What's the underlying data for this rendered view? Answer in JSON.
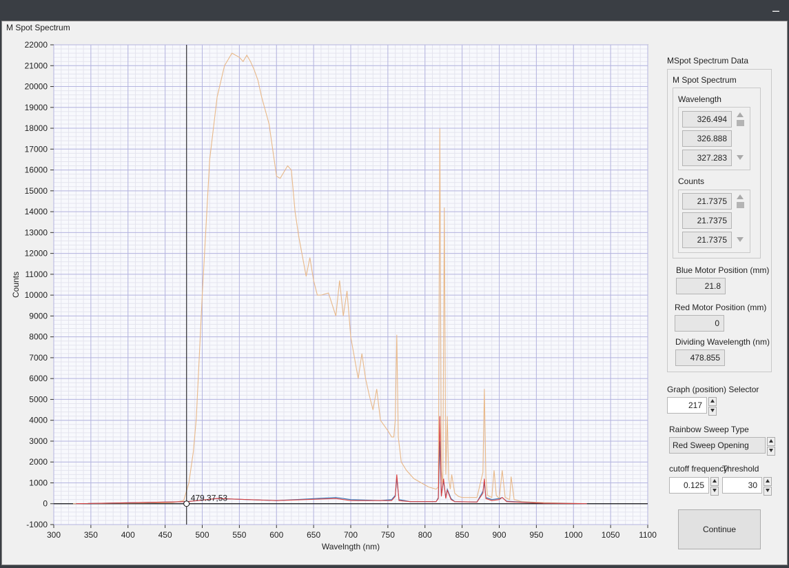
{
  "window": {
    "title": "M Spot Spectrum",
    "minimize_glyph": "–"
  },
  "chart_data": {
    "type": "line",
    "title": "",
    "xlabel": "Wavelngth (nm)",
    "ylabel": "Counts",
    "xlim": [
      300,
      1100
    ],
    "ylim": [
      -1000,
      22000
    ],
    "xticks": [
      300,
      350,
      400,
      450,
      500,
      550,
      600,
      650,
      700,
      750,
      800,
      850,
      900,
      950,
      1000,
      1050,
      1100
    ],
    "yticks": [
      -1000,
      0,
      1000,
      2000,
      3000,
      4000,
      5000,
      6000,
      7000,
      8000,
      9000,
      10000,
      11000,
      12000,
      13000,
      14000,
      15000,
      16000,
      17000,
      18000,
      19000,
      20000,
      21000,
      22000
    ],
    "grid": true,
    "cursor": {
      "x": 478.855,
      "label": "479.37,53"
    },
    "series": [
      {
        "color": "#e8b888",
        "x": [
          326,
          460,
          475,
          482,
          488,
          492,
          500,
          510,
          520,
          530,
          540,
          550,
          555,
          560,
          565,
          570,
          575,
          580,
          590,
          600,
          605,
          610,
          615,
          620,
          625,
          630,
          640,
          645,
          650,
          655,
          660,
          670,
          680,
          685,
          690,
          695,
          700,
          705,
          710,
          715,
          720,
          725,
          730,
          735,
          740,
          750,
          755,
          758,
          760,
          762,
          764,
          768,
          775,
          785,
          795,
          805,
          815,
          818,
          820,
          822,
          824,
          826,
          828,
          830,
          832,
          834,
          836,
          840,
          845,
          850,
          870,
          878,
          880,
          882,
          884,
          890,
          893,
          896,
          900,
          904,
          908,
          914,
          916,
          920,
          930,
          960,
          1018
        ],
        "y": [
          0,
          50,
          150,
          1000,
          2500,
          4100,
          10000,
          16500,
          19500,
          21000,
          21600,
          21400,
          21200,
          21500,
          21200,
          20800,
          20300,
          19500,
          18200,
          15700,
          15600,
          15900,
          16200,
          16000,
          14000,
          12800,
          10900,
          11800,
          10700,
          10000,
          10000,
          10100,
          9000,
          10700,
          9000,
          10200,
          8000,
          7000,
          6000,
          7200,
          6000,
          5200,
          4500,
          5500,
          4000,
          3500,
          3200,
          3200,
          4000,
          8100,
          3200,
          2000,
          1600,
          1200,
          1000,
          800,
          700,
          800,
          18000,
          1600,
          900,
          14200,
          1400,
          4200,
          1200,
          700,
          1400,
          500,
          350,
          300,
          300,
          1500,
          5500,
          1300,
          400,
          300,
          1600,
          400,
          250,
          1600,
          300,
          200,
          1300,
          200,
          100,
          50,
          0
        ]
      },
      {
        "color": "#3a78b8",
        "x": [
          330,
          480,
          520,
          560,
          600,
          680,
          700,
          740,
          755,
          760,
          762,
          765,
          780,
          815,
          818,
          820,
          822,
          825,
          828,
          830,
          835,
          840,
          870,
          878,
          880,
          882,
          890,
          900,
          904,
          910,
          960,
          1018
        ],
        "y": [
          0,
          100,
          250,
          200,
          150,
          300,
          200,
          150,
          200,
          400,
          1200,
          200,
          100,
          100,
          300,
          3000,
          400,
          1100,
          300,
          700,
          250,
          100,
          80,
          600,
          1000,
          300,
          200,
          250,
          300,
          120,
          20,
          0
        ]
      },
      {
        "color": "#d84040",
        "x": [
          330,
          480,
          520,
          560,
          600,
          680,
          700,
          740,
          755,
          760,
          762,
          765,
          780,
          815,
          818,
          820,
          822,
          825,
          828,
          830,
          835,
          840,
          870,
          878,
          880,
          882,
          890,
          900,
          904,
          910,
          960,
          1018
        ],
        "y": [
          0,
          100,
          250,
          200,
          150,
          250,
          150,
          150,
          150,
          350,
          1400,
          150,
          100,
          100,
          250,
          4200,
          350,
          1200,
          250,
          650,
          200,
          100,
          80,
          500,
          1200,
          250,
          150,
          200,
          300,
          100,
          20,
          0
        ]
      }
    ]
  },
  "panel": {
    "title": "MSpot Spectrum Data",
    "group": "M Spot Spectrum",
    "wavelength_label": "Wavelength",
    "wavelength_values": [
      "326.494",
      "326.888",
      "327.283"
    ],
    "counts_label": "Counts",
    "counts_values": [
      "21.7375",
      "21.7375",
      "21.7375"
    ],
    "blue_motor_label": "Blue Motor Position (mm)",
    "blue_motor_value": "21.8",
    "red_motor_label": "Red Motor Position (mm)",
    "red_motor_value": "0",
    "dividing_label": "Dividing Wavelength (nm)",
    "dividing_value": "478.855",
    "graph_selector_label": "Graph (position) Selector",
    "graph_selector_value": "217",
    "rainbow_label": "Rainbow Sweep Type",
    "rainbow_value": "Red Sweep Opening",
    "cutoff_label": "cutoff frequency",
    "cutoff_value": "0.125",
    "threshold_label": "Threshold",
    "threshold_value": "30",
    "continue_label": "Continue"
  }
}
